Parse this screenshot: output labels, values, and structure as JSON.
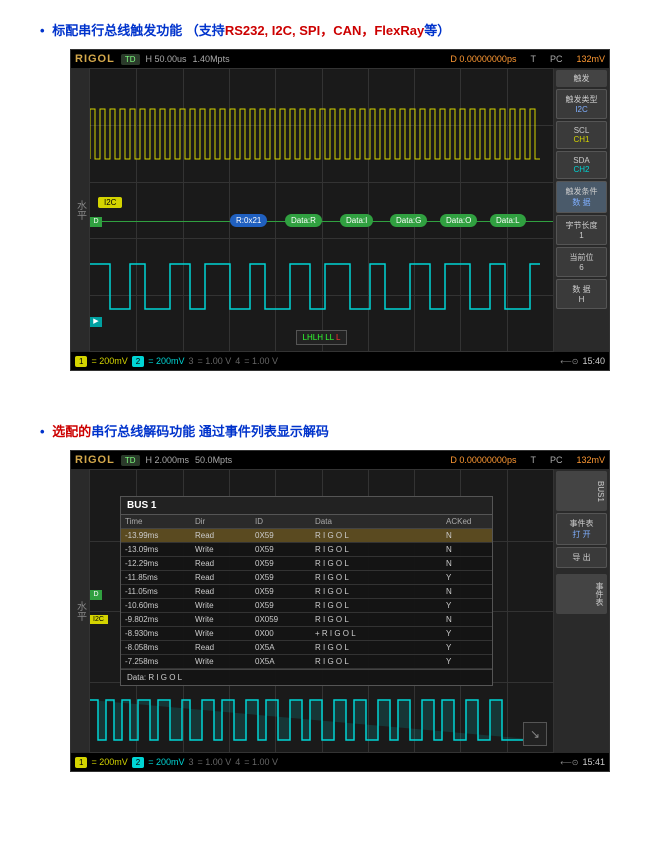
{
  "section1": {
    "title_prefix": "标配串行总线触发功能 （支持",
    "title_red": "RS232, I2C, SPI，CAN，FlexRay",
    "title_suffix": "等）"
  },
  "section2": {
    "title_prefix": "选配的",
    "title_mid": "串行总线解码功能 通过事件列表显示解码"
  },
  "scope1": {
    "brand": "RIGOL",
    "mode": "TD",
    "timebase": "H 50.00us",
    "sample": "1.40Mpts",
    "delay": "D 0.00000000ps",
    "trigger": "T",
    "coupling": "PC",
    "trig_voltage": "132mV",
    "left_label": "水平",
    "panel_tab": "触发",
    "panel": {
      "trigger_type": "触发类型",
      "protocol": "I2C",
      "scl": "SCL",
      "ch1": "CH1",
      "sda": "SDA",
      "ch2": "CH2",
      "trigger_cond": "触发条件",
      "data": "数 据",
      "byte_len": "字节长度",
      "byte_val": "1",
      "cur_bit": "当前位",
      "cur_val": "6",
      "data2": "数 据",
      "data2_val": "H"
    },
    "i2c_label": "I2C",
    "decode": {
      "addr": "R:0x21",
      "d1": "Data:R",
      "d2": "Data:I",
      "d3": "Data:G",
      "d4": "Data:O",
      "d5": "Data:L"
    },
    "pattern": "LHLH LL",
    "pattern_end": "L",
    "footer": {
      "ch1_num": "1",
      "ch1": "= 200mV",
      "ch2_num": "2",
      "ch2": "= 200mV",
      "ch3_num": "3",
      "ch3": "= 1.00 V",
      "ch4_num": "4",
      "ch4": "= 1.00 V",
      "time": "15:40"
    }
  },
  "scope2": {
    "brand": "RIGOL",
    "mode": "TD",
    "timebase": "H 2.000ms",
    "sample": "50.0Mpts",
    "delay": "D 0.00000000ps",
    "trigger": "T",
    "coupling": "PC",
    "trig_voltage": "132mV",
    "left_label": "水平",
    "right_tab1": "BUS1",
    "right_tab2": "事件表",
    "panel": {
      "event_table": "事件表",
      "open": "打 开",
      "export": "导 出"
    },
    "bus_title": "BUS 1",
    "columns": {
      "time": "Time",
      "dir": "Dir",
      "id": "ID",
      "data": "Data",
      "ack": "ACKed"
    },
    "rows": [
      {
        "time": "-13.99ms",
        "dir": "Read",
        "id": "0X59",
        "data": "R I G O L",
        "ack": "N",
        "sel": true
      },
      {
        "time": "-13.09ms",
        "dir": "Write",
        "id": "0X59",
        "data": "R I G O L",
        "ack": "N",
        "sel": false
      },
      {
        "time": "-12.29ms",
        "dir": "Read",
        "id": "0X59",
        "data": "R I G O L",
        "ack": "N",
        "sel": false
      },
      {
        "time": "-11.85ms",
        "dir": "Read",
        "id": "0X59",
        "data": "R I G O L",
        "ack": "Y",
        "sel": false
      },
      {
        "time": "-11.05ms",
        "dir": "Read",
        "id": "0X59",
        "data": "R I G O L",
        "ack": "N",
        "sel": false
      },
      {
        "time": "-10.60ms",
        "dir": "Write",
        "id": "0X59",
        "data": "R I G O L",
        "ack": "Y",
        "sel": false
      },
      {
        "time": "-9.802ms",
        "dir": "Write",
        "id": "0X059",
        "data": "R I G O L",
        "ack": "N",
        "sel": false
      },
      {
        "time": "-8.930ms",
        "dir": "Write",
        "id": "0X00",
        "data": "+ R I G O L",
        "ack": "Y",
        "sel": false
      },
      {
        "time": "-8.058ms",
        "dir": "Read",
        "id": "0X5A",
        "data": "R I G O L",
        "ack": "Y",
        "sel": false
      },
      {
        "time": "-7.258ms",
        "dir": "Write",
        "id": "0X5A",
        "data": "R I G O L",
        "ack": "Y",
        "sel": false
      }
    ],
    "data_footer": "Data: R I G O L",
    "footer": {
      "ch1_num": "1",
      "ch1": "= 200mV",
      "ch2_num": "2",
      "ch2": "= 200mV",
      "ch3_num": "3",
      "ch3": "= 1.00 V",
      "ch4_num": "4",
      "ch4": "= 1.00 V",
      "time": "15:41"
    }
  }
}
